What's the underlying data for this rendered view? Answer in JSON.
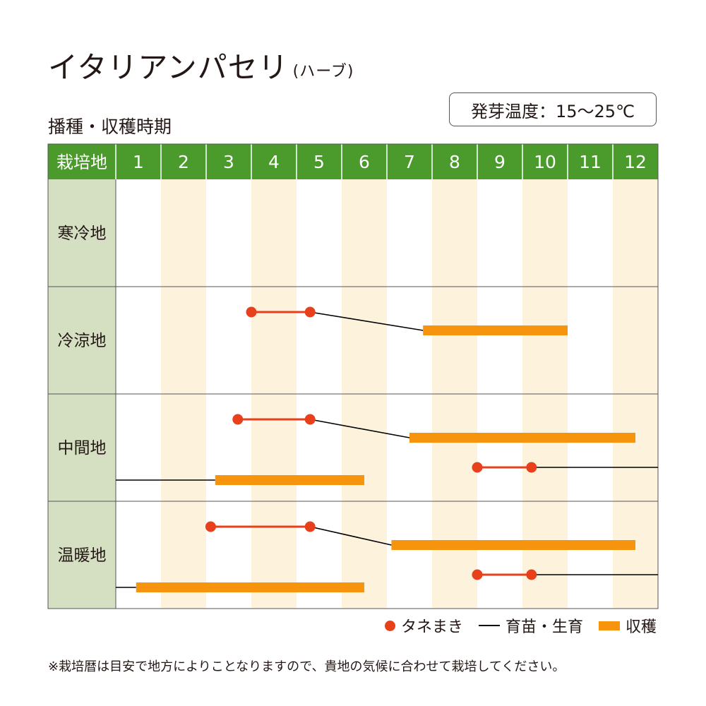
{
  "title": "イタリアンパセリ",
  "title_sub": "(ハーブ)",
  "subtitle": "播種・収穫時期",
  "germination_temp": "発芽温度：15〜25℃",
  "legend": {
    "sowing": "タネまき",
    "growing": "育苗・生育",
    "harvest": "収穫"
  },
  "footnote": "※栽培暦は目安で地方によりことなりますので、貴地の気候に合わせて栽培してください。",
  "colors": {
    "header": "#4a9a2c",
    "region_col": "#d5dfc2",
    "alt_month": "#fdf3dc",
    "sowing": "#e8401b",
    "harvest": "#f7940d",
    "growing": "#000000"
  },
  "chart_data": {
    "type": "table",
    "corner_label": "栽培地",
    "months": [
      "1",
      "2",
      "3",
      "4",
      "5",
      "6",
      "7",
      "8",
      "9",
      "10",
      "11",
      "12"
    ],
    "regions": [
      {
        "name": "寒冷地",
        "tracks": []
      },
      {
        "name": "冷涼地",
        "tracks": [
          {
            "sowing": [
              4.0,
              5.3
            ],
            "growing": [
              5.3,
              7.8
            ],
            "harvest": [
              7.8,
              11.0
            ]
          }
        ]
      },
      {
        "name": "中間地",
        "tracks": [
          {
            "sowing": [
              3.7,
              5.3
            ],
            "growing": [
              5.3,
              7.5
            ],
            "harvest": [
              7.5,
              12.5
            ]
          },
          {
            "sowing": [
              9.0,
              10.2
            ],
            "growing": [
              10.2,
              13.0
            ],
            "harvest": null,
            "continues": true
          }
        ],
        "wrap": {
          "growing": [
            1.0,
            3.2
          ],
          "harvest": [
            3.2,
            6.5
          ]
        }
      },
      {
        "name": "温暖地",
        "tracks": [
          {
            "sowing": [
              3.1,
              5.3
            ],
            "growing": [
              5.3,
              7.1
            ],
            "harvest": [
              7.1,
              12.5
            ]
          },
          {
            "sowing": [
              9.0,
              10.2
            ],
            "growing": [
              10.2,
              13.0
            ],
            "harvest": null,
            "continues": true
          }
        ],
        "wrap": {
          "growing": [
            1.0,
            1.45
          ],
          "harvest": [
            1.45,
            6.5
          ]
        }
      }
    ]
  }
}
